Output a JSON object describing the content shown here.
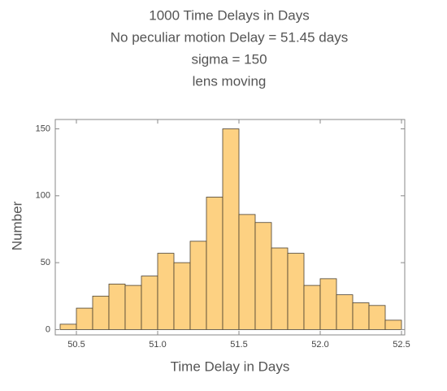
{
  "chart_data": {
    "type": "histogram",
    "title": "1000 Time Delays in Days",
    "subtitle": [
      "No peculiar motion Delay =  51.45   days",
      "sigma = 150",
      "lens moving"
    ],
    "x_label": "Time Delay in Days",
    "y_label": "Number",
    "bins": [
      50.4,
      50.5,
      50.6,
      50.7,
      50.8,
      50.9,
      51.0,
      51.1,
      51.2,
      51.3,
      51.4,
      51.5,
      51.6,
      51.7,
      51.8,
      51.9,
      52.0,
      52.1,
      52.2,
      52.3,
      52.4,
      52.5
    ],
    "counts": [
      4,
      16,
      25,
      34,
      33,
      40,
      57,
      50,
      66,
      99,
      150,
      86,
      80,
      61,
      57,
      33,
      38,
      26,
      20,
      18,
      7
    ],
    "color": "#fdd182",
    "edge_color": "#4a4030",
    "xlim": [
      50.37,
      52.52
    ],
    "ylim": [
      -4,
      157
    ],
    "xticks": [
      50.5,
      {
        "value": 51,
        "label": "51.0"
      },
      51.5,
      {
        "value": 52,
        "label": "52.0"
      },
      52.5
    ],
    "yticks": [
      0,
      50,
      100,
      150
    ]
  }
}
